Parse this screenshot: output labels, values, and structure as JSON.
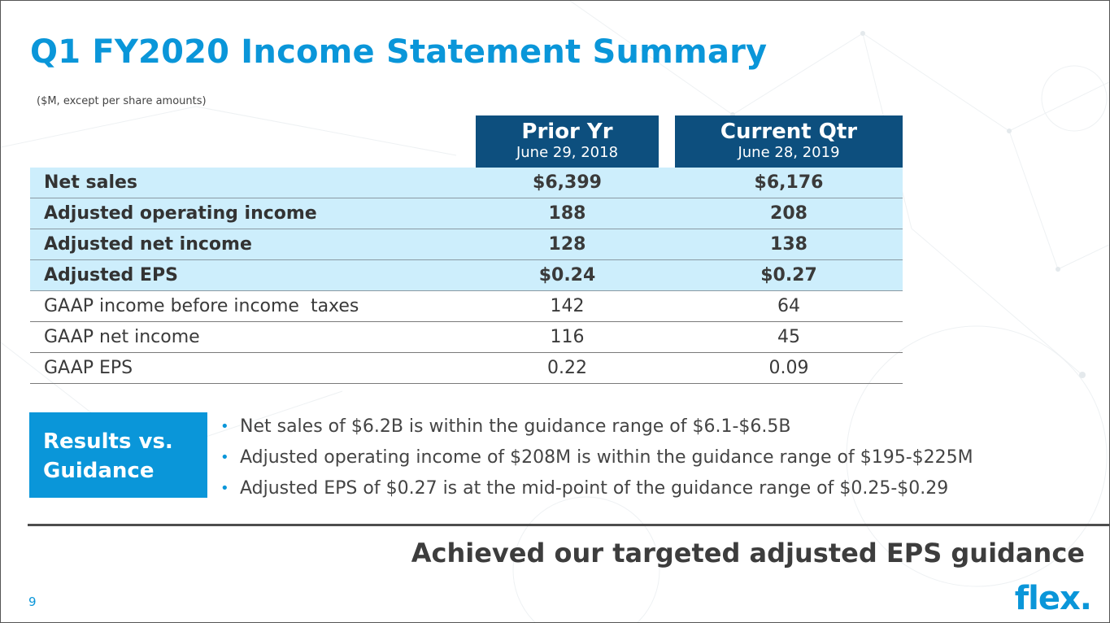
{
  "slide": {
    "title": "Q1 FY2020 Income Statement Summary",
    "subtitle": "($M, except per share amounts)",
    "page_number": "9",
    "logo_text": "flex.",
    "tagline": "Achieved our targeted adjusted EPS guidance",
    "accent_color": "#0a96d9",
    "header_color": "#0d4f7e",
    "highlight_row_color": "#cdeefc"
  },
  "table": {
    "columns": [
      {
        "heading": "Prior Yr",
        "date": "June 29, 2018"
      },
      {
        "heading": "Current Qtr",
        "date": "June 28, 2019"
      }
    ],
    "rows": [
      {
        "label": "Net sales",
        "prior": "$6,399",
        "current": "$6,176",
        "adjusted": true
      },
      {
        "label": "Adjusted operating income",
        "prior": "188",
        "current": "208",
        "adjusted": true
      },
      {
        "label": "Adjusted net income",
        "prior": "128",
        "current": "138",
        "adjusted": true
      },
      {
        "label": "Adjusted EPS",
        "prior": "$0.24",
        "current": "$0.27",
        "adjusted": true
      },
      {
        "label": "GAAP income before income  taxes",
        "prior": "142",
        "current": "64",
        "adjusted": false
      },
      {
        "label": "GAAP net income",
        "prior": "116",
        "current": "45",
        "adjusted": false
      },
      {
        "label": "GAAP EPS",
        "prior": "0.22",
        "current": "0.09",
        "adjusted": false
      }
    ]
  },
  "guidance": {
    "badge_line1": "Results vs.",
    "badge_line2": "Guidance",
    "bullet_glyph": "•",
    "bullets": [
      "Net sales of $6.2B is within the guidance range of $6.1-$6.5B",
      "Adjusted operating income of $208M is within the guidance range of $195-$225M",
      "Adjusted EPS of $0.27 is at the mid-point of the guidance range of $0.25-$0.29"
    ]
  }
}
